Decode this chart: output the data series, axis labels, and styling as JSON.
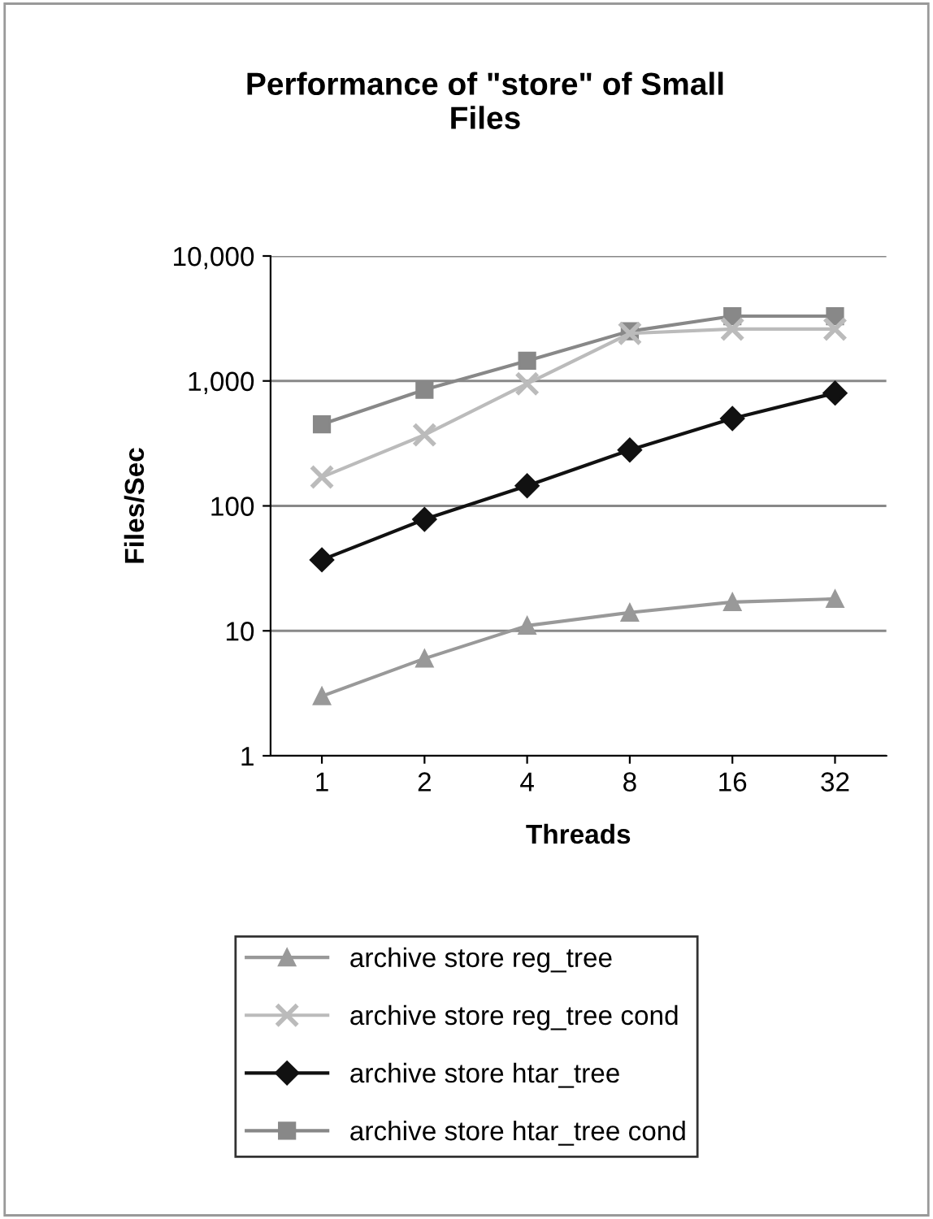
{
  "chart_data": {
    "type": "line",
    "title": "Performance of \"store\" of Small\nFiles",
    "xlabel": "Threads",
    "ylabel": "Files/Sec",
    "categories": [
      "1",
      "2",
      "4",
      "8",
      "16",
      "32"
    ],
    "series": [
      {
        "name": "archive store reg_tree",
        "color": "#999999",
        "marker": "triangle",
        "values": [
          3,
          6,
          11,
          14,
          17,
          18
        ]
      },
      {
        "name": "archive store reg_tree cond",
        "color": "#bbbbbb",
        "marker": "cross",
        "values": [
          170,
          370,
          950,
          2400,
          2600,
          2600
        ]
      },
      {
        "name": "archive store htar_tree",
        "color": "#111111",
        "marker": "diamond",
        "values": [
          37,
          78,
          145,
          280,
          500,
          800
        ]
      },
      {
        "name": "archive store htar_tree cond",
        "color": "#888888",
        "marker": "square",
        "values": [
          450,
          850,
          1450,
          2500,
          3300,
          3300
        ]
      }
    ],
    "log": "y",
    "ylim": [
      1,
      10000
    ],
    "yticks": [
      1,
      10,
      100,
      {
        "value": 1000,
        "label": "1,000"
      },
      {
        "value": 10000,
        "label": "10,000"
      }
    ],
    "grid": "y",
    "legend": "bottom",
    "line_style": "solid"
  }
}
